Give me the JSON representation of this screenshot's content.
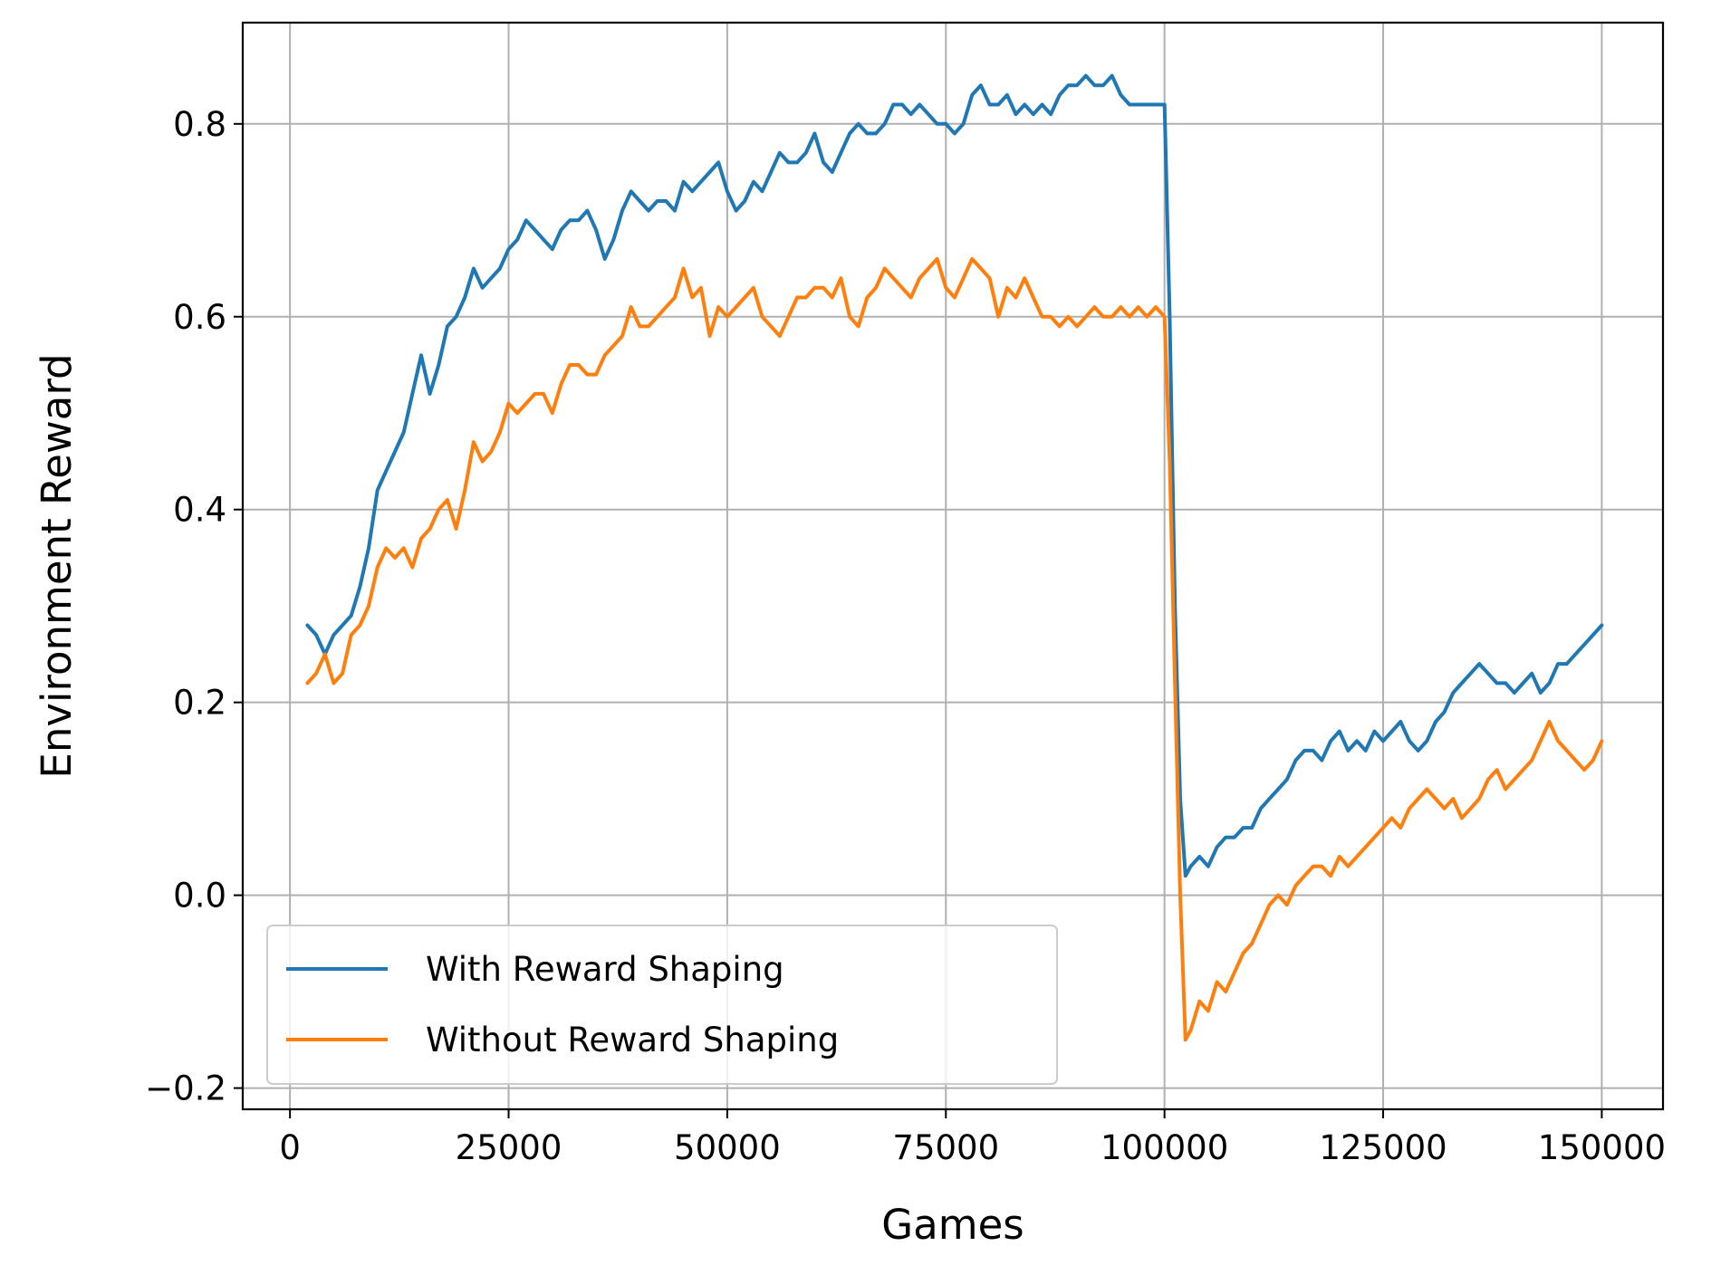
{
  "chart_data": {
    "type": "line",
    "xlabel": "Games",
    "ylabel": "Environment Reward",
    "xlim": [
      -5400,
      157000
    ],
    "ylim": [
      -0.222,
      0.905
    ],
    "x_ticks": [
      0,
      25000,
      50000,
      75000,
      100000,
      125000,
      150000
    ],
    "x_tick_labels": [
      "0",
      "25000",
      "50000",
      "75000",
      "100000",
      "125000",
      "150000"
    ],
    "y_ticks": [
      -0.2,
      0.0,
      0.2,
      0.4,
      0.6,
      0.8
    ],
    "y_tick_labels": [
      "−0.2",
      "0.0",
      "0.2",
      "0.4",
      "0.6",
      "0.8"
    ],
    "grid": true,
    "legend_position": "lower-left",
    "series": [
      {
        "name": "With Reward Shaping",
        "color": "#1f77b4",
        "x": [
          2000,
          3000,
          4000,
          5000,
          6000,
          7000,
          8000,
          9000,
          10000,
          11000,
          12000,
          13000,
          14000,
          15000,
          16000,
          17000,
          18000,
          19000,
          20000,
          21000,
          22000,
          23000,
          24000,
          25000,
          26000,
          27000,
          28000,
          29000,
          30000,
          31000,
          32000,
          33000,
          34000,
          35000,
          36000,
          37000,
          38000,
          39000,
          40000,
          41000,
          42000,
          43000,
          44000,
          45000,
          46000,
          47000,
          48000,
          49000,
          50000,
          51000,
          52000,
          53000,
          54000,
          55000,
          56000,
          57000,
          58000,
          59000,
          60000,
          61000,
          62000,
          63000,
          64000,
          65000,
          66000,
          67000,
          68000,
          69000,
          70000,
          71000,
          72000,
          73000,
          74000,
          75000,
          76000,
          77000,
          78000,
          79000,
          80000,
          81000,
          82000,
          83000,
          84000,
          85000,
          86000,
          87000,
          88000,
          89000,
          90000,
          91000,
          92000,
          93000,
          94000,
          95000,
          96000,
          97000,
          98000,
          99000,
          100000,
          100600,
          101200,
          101800,
          102400,
          103000,
          104000,
          105000,
          106000,
          107000,
          108000,
          109000,
          110000,
          111000,
          112000,
          113000,
          114000,
          115000,
          116000,
          117000,
          118000,
          119000,
          120000,
          121000,
          122000,
          123000,
          124000,
          125000,
          126000,
          127000,
          128000,
          129000,
          130000,
          131000,
          132000,
          133000,
          134000,
          135000,
          136000,
          137000,
          138000,
          139000,
          140000,
          141000,
          142000,
          143000,
          144000,
          145000,
          146000,
          147000,
          148000,
          149000,
          150000
        ],
        "y": [
          0.28,
          0.27,
          0.25,
          0.27,
          0.28,
          0.29,
          0.32,
          0.36,
          0.42,
          0.44,
          0.46,
          0.48,
          0.52,
          0.56,
          0.52,
          0.55,
          0.59,
          0.6,
          0.62,
          0.65,
          0.63,
          0.64,
          0.65,
          0.67,
          0.68,
          0.7,
          0.69,
          0.68,
          0.67,
          0.69,
          0.7,
          0.7,
          0.71,
          0.69,
          0.66,
          0.68,
          0.71,
          0.73,
          0.72,
          0.71,
          0.72,
          0.72,
          0.71,
          0.74,
          0.73,
          0.74,
          0.75,
          0.76,
          0.73,
          0.71,
          0.72,
          0.74,
          0.73,
          0.75,
          0.77,
          0.76,
          0.76,
          0.77,
          0.79,
          0.76,
          0.75,
          0.77,
          0.79,
          0.8,
          0.79,
          0.79,
          0.8,
          0.82,
          0.82,
          0.81,
          0.82,
          0.81,
          0.8,
          0.8,
          0.79,
          0.8,
          0.83,
          0.84,
          0.82,
          0.82,
          0.83,
          0.81,
          0.82,
          0.81,
          0.82,
          0.81,
          0.83,
          0.84,
          0.84,
          0.85,
          0.84,
          0.84,
          0.85,
          0.83,
          0.82,
          0.82,
          0.82,
          0.82,
          0.82,
          0.6,
          0.3,
          0.1,
          0.02,
          0.03,
          0.04,
          0.03,
          0.05,
          0.06,
          0.06,
          0.07,
          0.07,
          0.09,
          0.1,
          0.11,
          0.12,
          0.14,
          0.15,
          0.15,
          0.14,
          0.16,
          0.17,
          0.15,
          0.16,
          0.15,
          0.17,
          0.16,
          0.17,
          0.18,
          0.16,
          0.15,
          0.16,
          0.18,
          0.19,
          0.21,
          0.22,
          0.23,
          0.24,
          0.23,
          0.22,
          0.22,
          0.21,
          0.22,
          0.23,
          0.21,
          0.22,
          0.24,
          0.24,
          0.25,
          0.26,
          0.27,
          0.28
        ]
      },
      {
        "name": "Without Reward Shaping",
        "color": "#ff7f0e",
        "x": [
          2000,
          3000,
          4000,
          5000,
          6000,
          7000,
          8000,
          9000,
          10000,
          11000,
          12000,
          13000,
          14000,
          15000,
          16000,
          17000,
          18000,
          19000,
          20000,
          21000,
          22000,
          23000,
          24000,
          25000,
          26000,
          27000,
          28000,
          29000,
          30000,
          31000,
          32000,
          33000,
          34000,
          35000,
          36000,
          37000,
          38000,
          39000,
          40000,
          41000,
          42000,
          43000,
          44000,
          45000,
          46000,
          47000,
          48000,
          49000,
          50000,
          51000,
          52000,
          53000,
          54000,
          55000,
          56000,
          57000,
          58000,
          59000,
          60000,
          61000,
          62000,
          63000,
          64000,
          65000,
          66000,
          67000,
          68000,
          69000,
          70000,
          71000,
          72000,
          73000,
          74000,
          75000,
          76000,
          77000,
          78000,
          79000,
          80000,
          81000,
          82000,
          83000,
          84000,
          85000,
          86000,
          87000,
          88000,
          89000,
          90000,
          91000,
          92000,
          93000,
          94000,
          95000,
          96000,
          97000,
          98000,
          99000,
          100000,
          100600,
          101200,
          101800,
          102400,
          103000,
          104000,
          105000,
          106000,
          107000,
          108000,
          109000,
          110000,
          111000,
          112000,
          113000,
          114000,
          115000,
          116000,
          117000,
          118000,
          119000,
          120000,
          121000,
          122000,
          123000,
          124000,
          125000,
          126000,
          127000,
          128000,
          129000,
          130000,
          131000,
          132000,
          133000,
          134000,
          135000,
          136000,
          137000,
          138000,
          139000,
          140000,
          141000,
          142000,
          143000,
          144000,
          145000,
          146000,
          147000,
          148000,
          149000,
          150000
        ],
        "y": [
          0.22,
          0.23,
          0.25,
          0.22,
          0.23,
          0.27,
          0.28,
          0.3,
          0.34,
          0.36,
          0.35,
          0.36,
          0.34,
          0.37,
          0.38,
          0.4,
          0.41,
          0.38,
          0.42,
          0.47,
          0.45,
          0.46,
          0.48,
          0.51,
          0.5,
          0.51,
          0.52,
          0.52,
          0.5,
          0.53,
          0.55,
          0.55,
          0.54,
          0.54,
          0.56,
          0.57,
          0.58,
          0.61,
          0.59,
          0.59,
          0.6,
          0.61,
          0.62,
          0.65,
          0.62,
          0.63,
          0.58,
          0.61,
          0.6,
          0.61,
          0.62,
          0.63,
          0.6,
          0.59,
          0.58,
          0.6,
          0.62,
          0.62,
          0.63,
          0.63,
          0.62,
          0.64,
          0.6,
          0.59,
          0.62,
          0.63,
          0.65,
          0.64,
          0.63,
          0.62,
          0.64,
          0.65,
          0.66,
          0.63,
          0.62,
          0.64,
          0.66,
          0.65,
          0.64,
          0.6,
          0.63,
          0.62,
          0.64,
          0.62,
          0.6,
          0.6,
          0.59,
          0.6,
          0.59,
          0.6,
          0.61,
          0.6,
          0.6,
          0.61,
          0.6,
          0.61,
          0.6,
          0.61,
          0.6,
          0.45,
          0.22,
          0.0,
          -0.15,
          -0.14,
          -0.11,
          -0.12,
          -0.09,
          -0.1,
          -0.08,
          -0.06,
          -0.05,
          -0.03,
          -0.01,
          0.0,
          -0.01,
          0.01,
          0.02,
          0.03,
          0.03,
          0.02,
          0.04,
          0.03,
          0.04,
          0.05,
          0.06,
          0.07,
          0.08,
          0.07,
          0.09,
          0.1,
          0.11,
          0.1,
          0.09,
          0.1,
          0.08,
          0.09,
          0.1,
          0.12,
          0.13,
          0.11,
          0.12,
          0.13,
          0.14,
          0.16,
          0.18,
          0.16,
          0.15,
          0.14,
          0.13,
          0.14,
          0.16
        ]
      }
    ]
  }
}
